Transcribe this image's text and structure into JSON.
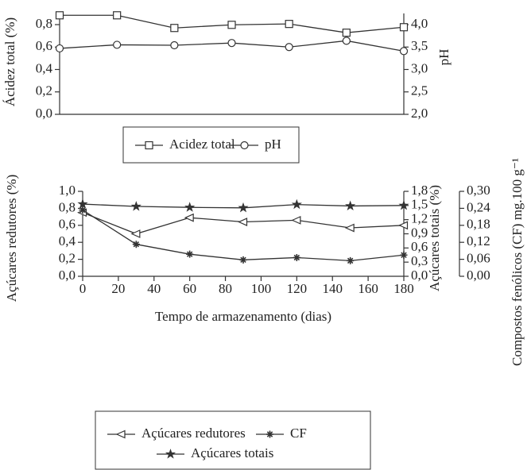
{
  "chart_data": [
    {
      "type": "line",
      "x": [
        0,
        30,
        60,
        90,
        120,
        150,
        180
      ],
      "xlim": [
        0,
        180
      ],
      "ylabel": "Ácidez total (%)",
      "y2label": "pH",
      "ylim": [
        0,
        0.9
      ],
      "yticks": [
        {
          "value": 0,
          "label": "0,0"
        },
        {
          "value": 0.2,
          "label": "0,2"
        },
        {
          "value": 0.4,
          "label": "0,4"
        },
        {
          "value": 0.6,
          "label": "0,6"
        },
        {
          "value": 0.8,
          "label": "0,8"
        }
      ],
      "y2lim": [
        2.0,
        4.25
      ],
      "y2ticks": [
        {
          "value": 2.0,
          "label": "2,0"
        },
        {
          "value": 2.5,
          "label": "2,5"
        },
        {
          "value": 3.0,
          "label": "3,0"
        },
        {
          "value": 3.5,
          "label": "3,5"
        },
        {
          "value": 4.0,
          "label": "4,0"
        }
      ],
      "series": [
        {
          "name": "Acidez total",
          "color": "#333333",
          "marker": "square",
          "values": [
            0.883,
            0.883,
            0.77,
            0.798,
            0.806,
            0.728,
            0.777
          ]
        },
        {
          "name": "pH",
          "color": "#333333",
          "marker": "circle",
          "axis": "y2",
          "values": [
            3.47,
            3.55,
            3.54,
            3.59,
            3.5,
            3.64,
            3.41
          ]
        }
      ]
    },
    {
      "type": "line",
      "x": [
        0,
        30,
        60,
        90,
        120,
        150,
        180
      ],
      "xlim": [
        0,
        180
      ],
      "xticks": [
        0,
        20,
        40,
        60,
        80,
        100,
        120,
        140,
        160,
        180
      ],
      "xlabel": "Tempo de armazenamento (dias)",
      "ylabel": "Açúcares redutores (%)",
      "y2label": "Açúcares totais (%)",
      "y3label": "Compostos fenólicos (CF) mg.100 g⁻¹",
      "ylim": [
        0,
        1.0
      ],
      "yticks": [
        {
          "value": 0,
          "label": "0,0"
        },
        {
          "value": 0.2,
          "label": "0,2"
        },
        {
          "value": 0.4,
          "label": "0,4"
        },
        {
          "value": 0.6,
          "label": "0,6"
        },
        {
          "value": 0.8,
          "label": "0,8"
        },
        {
          "value": 1.0,
          "label": "1,0"
        }
      ],
      "y2lim": [
        0,
        1.8
      ],
      "y2ticks": [
        {
          "value": 0,
          "label": "0,0"
        },
        {
          "value": 0.3,
          "label": "0,3"
        },
        {
          "value": 0.6,
          "label": "0,6"
        },
        {
          "value": 0.9,
          "label": "0,9"
        },
        {
          "value": 1.2,
          "label": "1,2"
        },
        {
          "value": 1.5,
          "label": "1,5"
        },
        {
          "value": 1.8,
          "label": "1,8"
        }
      ],
      "y3lim": [
        0,
        0.3
      ],
      "y3ticks": [
        {
          "value": 0,
          "label": "0,00"
        },
        {
          "value": 0.06,
          "label": "0,06"
        },
        {
          "value": 0.12,
          "label": "0,12"
        },
        {
          "value": 0.18,
          "label": "0,18"
        },
        {
          "value": 0.24,
          "label": "0,24"
        },
        {
          "value": 0.3,
          "label": "0,30"
        }
      ],
      "series": [
        {
          "name": "Açúcares redutores",
          "color": "#333333",
          "marker": "triangle-left",
          "values": [
            0.75,
            0.5,
            0.69,
            0.64,
            0.66,
            0.57,
            0.6
          ]
        },
        {
          "name": "CF",
          "color": "#333333",
          "marker": "asterisk",
          "axis": "y3",
          "values": [
            0.234,
            0.113,
            0.078,
            0.058,
            0.066,
            0.055,
            0.075
          ]
        },
        {
          "name": "Açúcares totais",
          "color": "#333333",
          "marker": "star",
          "axis": "y2",
          "values": [
            1.53,
            1.48,
            1.46,
            1.45,
            1.52,
            1.49,
            1.5
          ]
        }
      ]
    }
  ]
}
